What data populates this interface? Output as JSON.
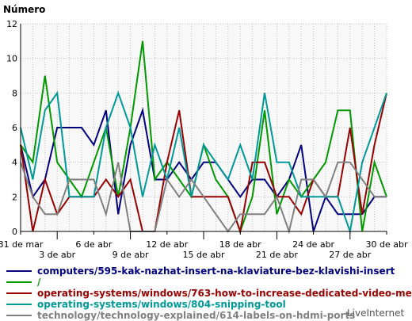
{
  "chart_data": {
    "type": "line",
    "title": "",
    "ylabel": "Número",
    "xlabel": "",
    "ylim": [
      0,
      12
    ],
    "yticks": [
      0,
      2,
      4,
      6,
      8,
      10,
      12
    ],
    "grid": true,
    "legend_position": "bottom",
    "x": [
      "31 de mar",
      "1",
      "2",
      "3 de abr",
      "4",
      "5",
      "6 de abr",
      "7",
      "8",
      "9 de abr",
      "10",
      "11",
      "12 de abr",
      "13",
      "14",
      "15 de abr",
      "16",
      "17",
      "18 de abr",
      "19",
      "20",
      "21 de abr",
      "22",
      "23",
      "24 de abr",
      "25",
      "26",
      "27 de abr",
      "28",
      "29",
      "30 de abr"
    ],
    "xtick_labels": [
      {
        "label": "31 de mar",
        "index": 0,
        "row": 0
      },
      {
        "label": "3 de abr",
        "index": 3,
        "row": 1
      },
      {
        "label": "6 de abr",
        "index": 6,
        "row": 0
      },
      {
        "label": "9 de abr",
        "index": 9,
        "row": 1
      },
      {
        "label": "12 de abr",
        "index": 12,
        "row": 0
      },
      {
        "label": "15 de abr",
        "index": 15,
        "row": 1
      },
      {
        "label": "18 de abr",
        "index": 18,
        "row": 0
      },
      {
        "label": "21 de abr",
        "index": 21,
        "row": 1
      },
      {
        "label": "24 de abr",
        "index": 24,
        "row": 0
      },
      {
        "label": "27 de abr",
        "index": 27,
        "row": 1
      },
      {
        "label": "30 de abr",
        "index": 30,
        "row": 0
      }
    ],
    "series": [
      {
        "name": "computers/595-kak-nazhat-insert-na-klaviature-bez-klavishi-insert",
        "color": "#000080",
        "values": [
          5,
          2,
          3,
          6,
          6,
          6,
          5,
          7,
          1,
          5,
          7,
          3,
          3,
          4,
          3,
          4,
          4,
          3,
          2,
          3,
          3,
          2,
          3,
          5,
          0,
          2,
          1,
          1,
          1,
          2,
          2
        ]
      },
      {
        "name": "/",
        "color": "#009900",
        "values": [
          5,
          4,
          9,
          4,
          3,
          2,
          4,
          6,
          2,
          6,
          11,
          3,
          4,
          3,
          2,
          5,
          3,
          2,
          0,
          2,
          7,
          1,
          3,
          2,
          3,
          4,
          7,
          7,
          0,
          4,
          2
        ]
      },
      {
        "name": "operating-systems/windows/763-how-to-increase-dedicated-video-memory",
        "color": "#990000",
        "values": [
          5,
          0,
          3,
          1,
          2,
          2,
          2,
          3,
          2,
          3,
          0,
          0,
          4,
          7,
          2,
          2,
          2,
          2,
          0,
          4,
          4,
          2,
          2,
          1,
          3,
          2,
          2,
          6,
          1,
          5,
          8
        ]
      },
      {
        "name": "operating-systems/windows/804-snipping-tool",
        "color": "#009999",
        "values": [
          6,
          3,
          7,
          8,
          2,
          2,
          2,
          6,
          8,
          6,
          2,
          5,
          3,
          6,
          2,
          5,
          4,
          3,
          5,
          3,
          8,
          4,
          4,
          2,
          2,
          2,
          2,
          0,
          4,
          6,
          8
        ]
      },
      {
        "name": "technology/technology-explained/614-labels-on-hdmi-ports",
        "color": "#808080",
        "values": [
          4,
          2,
          1,
          1,
          3,
          3,
          3,
          1,
          4,
          0,
          0,
          0,
          3,
          2,
          3,
          2,
          1,
          0,
          1,
          1,
          1,
          2,
          0,
          3,
          3,
          2,
          4,
          4,
          3,
          2,
          2
        ]
      }
    ]
  },
  "watermark": "LiveInternet",
  "colors": {
    "plot_background": "#f8f8f8",
    "grid": "#c0c0c0",
    "axis": "#000000"
  }
}
